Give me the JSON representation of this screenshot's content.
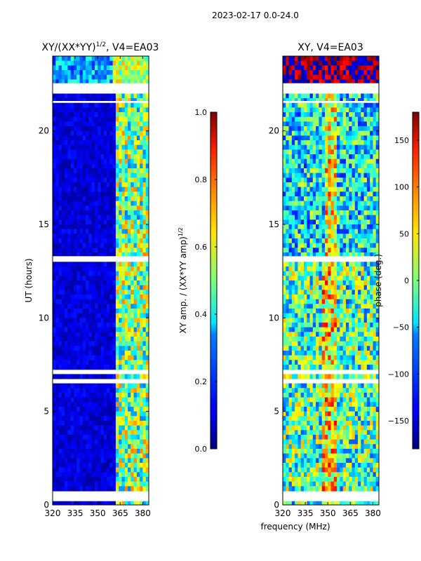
{
  "figure": {
    "suptitle": "2023-02-17 0.0-24.0",
    "shared_xlabel": "frequency (MHz)"
  },
  "chart_data": [
    {
      "type": "heatmap",
      "title_main": "XY/(XX*YY)",
      "title_sup": "1/2",
      "title_suffix": ", V4=EA03",
      "ylabel": "UT (hours)",
      "xlim": [
        320,
        384
      ],
      "ylim": [
        0,
        24
      ],
      "xticks": [
        {
          "v": 320,
          "label": "320"
        },
        {
          "v": 335,
          "label": "335"
        },
        {
          "v": 350,
          "label": "350"
        },
        {
          "v": 365,
          "label": "365"
        },
        {
          "v": 380,
          "label": "380"
        }
      ],
      "yticks": [
        {
          "v": 0,
          "label": "0"
        },
        {
          "v": 5,
          "label": "5"
        },
        {
          "v": 10,
          "label": "10"
        },
        {
          "v": 15,
          "label": "15"
        },
        {
          "v": 20,
          "label": "20"
        }
      ],
      "gaps_hours": [
        [
          0.2,
          0.7
        ],
        [
          22.0,
          22.55
        ],
        [
          21.5,
          21.6
        ],
        [
          13.05,
          13.3
        ],
        [
          7.0,
          7.2
        ],
        [
          6.6,
          6.72
        ]
      ],
      "colorbar": {
        "label": "XY amp. / (XX*YY amp)",
        "label_sup": "1/2",
        "range": [
          0.0,
          1.0
        ],
        "ticks": [
          {
            "v": 0.0,
            "label": "0.0"
          },
          {
            "v": 0.2,
            "label": "0.2"
          },
          {
            "v": 0.4,
            "label": "0.4"
          },
          {
            "v": 0.6,
            "label": "0.6"
          },
          {
            "v": 0.8,
            "label": "0.8"
          },
          {
            "v": 1.0,
            "label": "1.0"
          }
        ],
        "colormap": "jet"
      }
    },
    {
      "type": "heatmap",
      "title": "XY, V4=EA03",
      "xlim": [
        320,
        384
      ],
      "ylim": [
        0,
        24
      ],
      "xticks": [
        {
          "v": 320,
          "label": "320"
        },
        {
          "v": 335,
          "label": "335"
        },
        {
          "v": 350,
          "label": "350"
        },
        {
          "v": 365,
          "label": "365"
        },
        {
          "v": 380,
          "label": "380"
        }
      ],
      "yticks": [
        {
          "v": 0,
          "label": "0"
        },
        {
          "v": 5,
          "label": "5"
        },
        {
          "v": 10,
          "label": "10"
        },
        {
          "v": 15,
          "label": "15"
        },
        {
          "v": 20,
          "label": "20"
        }
      ],
      "gaps_hours": [
        [
          0.2,
          0.7
        ],
        [
          22.0,
          22.55
        ],
        [
          21.5,
          21.6
        ],
        [
          13.05,
          13.3
        ],
        [
          7.0,
          7.2
        ],
        [
          6.6,
          6.72
        ]
      ],
      "colorbar": {
        "label": "phase (deg.)",
        "range": [
          -180,
          180
        ],
        "ticks": [
          {
            "v": -150,
            "label": "−150"
          },
          {
            "v": -100,
            "label": "−100"
          },
          {
            "v": -50,
            "label": "−50"
          },
          {
            "v": 0,
            "label": "0"
          },
          {
            "v": 50,
            "label": "50"
          },
          {
            "v": 100,
            "label": "100"
          },
          {
            "v": 150,
            "label": "150"
          }
        ],
        "colormap": "jet"
      }
    }
  ]
}
